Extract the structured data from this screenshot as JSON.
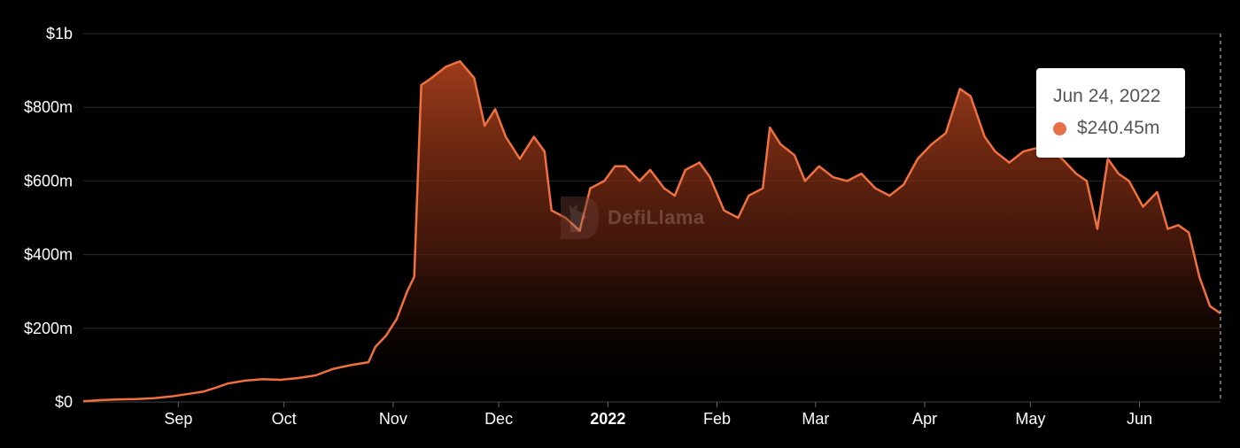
{
  "colors": {
    "background": "#000000",
    "line": "#f0703f",
    "fill_top": "#b8461f",
    "grid": "#2a2a2a",
    "tick_text": "#ffffff",
    "tooltip_dot": "#e8714a"
  },
  "watermark": {
    "text": "DefiLlama",
    "icon": "llama-logo-icon"
  },
  "tooltip": {
    "date": "Jun 24, 2022",
    "value": "$240.45m"
  },
  "chart_data": {
    "type": "area",
    "title": "",
    "xlabel": "",
    "ylabel": "",
    "units": "USD millions",
    "y_ticks": [
      {
        "value": 0,
        "label": "$0"
      },
      {
        "value": 200,
        "label": "$200m"
      },
      {
        "value": 400,
        "label": "$400m"
      },
      {
        "value": 600,
        "label": "$600m"
      },
      {
        "value": 800,
        "label": "$800m"
      },
      {
        "value": 1000,
        "label": "$1b"
      }
    ],
    "x_ticks": [
      {
        "date": "2021-09-01",
        "label": "Sep",
        "bold": false
      },
      {
        "date": "2021-10-01",
        "label": "Oct",
        "bold": false
      },
      {
        "date": "2021-11-01",
        "label": "Nov",
        "bold": false
      },
      {
        "date": "2021-12-01",
        "label": "Dec",
        "bold": false
      },
      {
        "date": "2022-01-01",
        "label": "2022",
        "bold": true
      },
      {
        "date": "2022-02-01",
        "label": "Feb",
        "bold": false
      },
      {
        "date": "2022-03-01",
        "label": "Mar",
        "bold": false
      },
      {
        "date": "2022-04-01",
        "label": "Apr",
        "bold": false
      },
      {
        "date": "2022-05-01",
        "label": "May",
        "bold": false
      },
      {
        "date": "2022-06-01",
        "label": "Jun",
        "bold": false
      }
    ],
    "ylim": [
      0,
      1000
    ],
    "xlim": [
      "2021-08-05",
      "2022-06-24"
    ],
    "grid": "horizontal",
    "highlight": {
      "date": "2022-06-24",
      "value": 240.45
    },
    "series": [
      {
        "values": [
          [
            "2021-08-05",
            2
          ],
          [
            "2021-08-10",
            5
          ],
          [
            "2021-08-15",
            7
          ],
          [
            "2021-08-20",
            8
          ],
          [
            "2021-08-25",
            10
          ],
          [
            "2021-08-30",
            15
          ],
          [
            "2021-09-04",
            22
          ],
          [
            "2021-09-08",
            28
          ],
          [
            "2021-09-12",
            40
          ],
          [
            "2021-09-15",
            50
          ],
          [
            "2021-09-20",
            58
          ],
          [
            "2021-09-25",
            62
          ],
          [
            "2021-09-30",
            60
          ],
          [
            "2021-10-05",
            65
          ],
          [
            "2021-10-10",
            72
          ],
          [
            "2021-10-15",
            90
          ],
          [
            "2021-10-20",
            100
          ],
          [
            "2021-10-25",
            108
          ],
          [
            "2021-10-27",
            150
          ],
          [
            "2021-10-30",
            180
          ],
          [
            "2021-11-02",
            225
          ],
          [
            "2021-11-05",
            300
          ],
          [
            "2021-11-07",
            340
          ],
          [
            "2021-11-08",
            600
          ],
          [
            "2021-11-09",
            860
          ],
          [
            "2021-11-12",
            880
          ],
          [
            "2021-11-16",
            910
          ],
          [
            "2021-11-20",
            925
          ],
          [
            "2021-11-24",
            880
          ],
          [
            "2021-11-27",
            750
          ],
          [
            "2021-11-30",
            795
          ],
          [
            "2021-12-03",
            720
          ],
          [
            "2021-12-07",
            660
          ],
          [
            "2021-12-11",
            720
          ],
          [
            "2021-12-14",
            680
          ],
          [
            "2021-12-16",
            520
          ],
          [
            "2021-12-20",
            500
          ],
          [
            "2021-12-24",
            465
          ],
          [
            "2021-12-27",
            580
          ],
          [
            "2021-12-31",
            600
          ],
          [
            "2022-01-03",
            640
          ],
          [
            "2022-01-06",
            640
          ],
          [
            "2022-01-10",
            600
          ],
          [
            "2022-01-13",
            630
          ],
          [
            "2022-01-17",
            580
          ],
          [
            "2022-01-20",
            560
          ],
          [
            "2022-01-23",
            630
          ],
          [
            "2022-01-27",
            650
          ],
          [
            "2022-01-30",
            610
          ],
          [
            "2022-02-03",
            520
          ],
          [
            "2022-02-07",
            500
          ],
          [
            "2022-02-10",
            560
          ],
          [
            "2022-02-14",
            580
          ],
          [
            "2022-02-16",
            745
          ],
          [
            "2022-02-19",
            700
          ],
          [
            "2022-02-23",
            670
          ],
          [
            "2022-02-26",
            600
          ],
          [
            "2022-03-02",
            640
          ],
          [
            "2022-03-06",
            610
          ],
          [
            "2022-03-10",
            600
          ],
          [
            "2022-03-14",
            620
          ],
          [
            "2022-03-18",
            580
          ],
          [
            "2022-03-22",
            560
          ],
          [
            "2022-03-26",
            590
          ],
          [
            "2022-03-30",
            660
          ],
          [
            "2022-04-03",
            700
          ],
          [
            "2022-04-07",
            730
          ],
          [
            "2022-04-11",
            850
          ],
          [
            "2022-04-14",
            830
          ],
          [
            "2022-04-18",
            720
          ],
          [
            "2022-04-21",
            680
          ],
          [
            "2022-04-25",
            650
          ],
          [
            "2022-04-29",
            680
          ],
          [
            "2022-05-03",
            690
          ],
          [
            "2022-05-07",
            680
          ],
          [
            "2022-05-10",
            660
          ],
          [
            "2022-05-14",
            620
          ],
          [
            "2022-05-17",
            600
          ],
          [
            "2022-05-20",
            470
          ],
          [
            "2022-05-23",
            660
          ],
          [
            "2022-05-26",
            620
          ],
          [
            "2022-05-29",
            600
          ],
          [
            "2022-06-02",
            530
          ],
          [
            "2022-06-06",
            570
          ],
          [
            "2022-06-09",
            470
          ],
          [
            "2022-06-12",
            480
          ],
          [
            "2022-06-15",
            460
          ],
          [
            "2022-06-18",
            340
          ],
          [
            "2022-06-21",
            260
          ],
          [
            "2022-06-24",
            240.45
          ]
        ]
      }
    ]
  }
}
